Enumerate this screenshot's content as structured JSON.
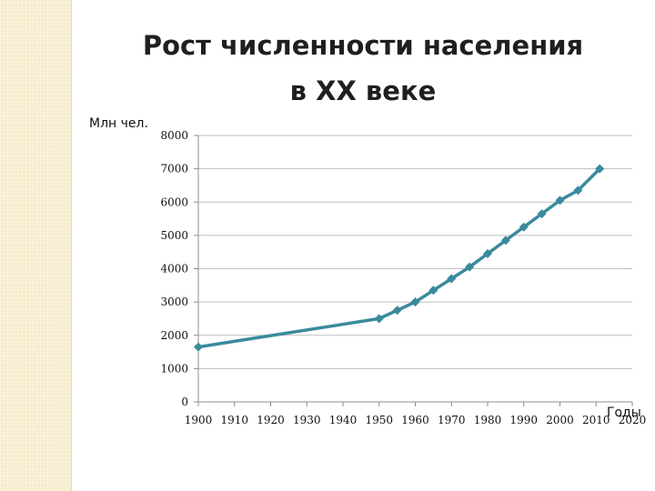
{
  "title_line1": "Рост численности населения",
  "title_line2": "в XX веке",
  "chart_data": {
    "type": "line",
    "title": "Рост численности населения в XX веке",
    "ylabel": "Млн чел.",
    "xlabel": "Годы",
    "xlim": [
      1900,
      2020
    ],
    "ylim": [
      0,
      8000
    ],
    "x_ticks": [
      1900,
      1910,
      1920,
      1930,
      1940,
      1950,
      1960,
      1970,
      1980,
      1990,
      2000,
      2010,
      2020
    ],
    "y_ticks": [
      0,
      1000,
      2000,
      3000,
      4000,
      5000,
      6000,
      7000,
      8000
    ],
    "grid": "horizontal",
    "legend": "none",
    "line_color": "#3a8a9e",
    "marker": "diamond",
    "series": [
      {
        "x": [
          1900,
          1950,
          1955,
          1960,
          1965,
          1970,
          1975,
          1980,
          1985,
          1990,
          1995,
          2000,
          2005,
          2011
        ],
        "values": [
          1650,
          2500,
          2750,
          3000,
          3350,
          3700,
          4050,
          4450,
          4850,
          5250,
          5650,
          6050,
          6350,
          7000
        ]
      }
    ]
  }
}
